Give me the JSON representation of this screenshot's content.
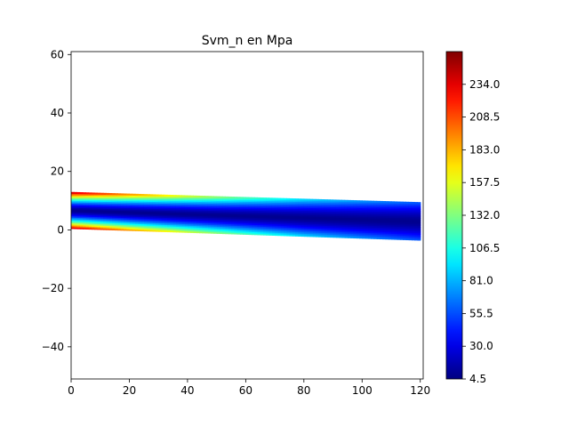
{
  "chart_data": {
    "type": "heatmap",
    "title": "Svm_n en Mpa",
    "xlabel": "",
    "ylabel": "",
    "xlim": [
      0,
      121
    ],
    "ylim": [
      -51,
      61
    ],
    "xticks": [
      "0",
      "20",
      "40",
      "60",
      "80",
      "100",
      "120"
    ],
    "xtick_values": [
      0,
      20,
      40,
      60,
      80,
      100,
      120
    ],
    "yticks": [
      "−40",
      "−20",
      "0",
      "20",
      "40",
      "60"
    ],
    "ytick_values": [
      -40,
      -20,
      0,
      20,
      40,
      60
    ],
    "grid": false,
    "colormap": "jet",
    "colorbar": {
      "min": 4.5,
      "max": 259.5,
      "ticks": [
        "4.5",
        "30.0",
        "55.5",
        "81.0",
        "106.5",
        "132.0",
        "157.5",
        "183.0",
        "208.5",
        "234.0"
      ],
      "tick_values": [
        4.5,
        30.0,
        55.5,
        81.0,
        106.5,
        132.0,
        157.5,
        183.0,
        208.5,
        234.0
      ]
    },
    "beam": {
      "x_range": [
        0,
        120
      ],
      "bottom_edge": {
        "x": [
          0,
          120
        ],
        "y": [
          0.5,
          -3.5
        ]
      },
      "top_edge": {
        "x": [
          0,
          120
        ],
        "y": [
          13,
          9.5
        ]
      },
      "stress_at_outer_fibres": {
        "x": [
          0,
          20,
          40,
          60,
          80,
          100,
          120
        ],
        "svm": [
          250,
          200,
          160,
          125,
          95,
          75,
          60
        ]
      },
      "stress_at_neutral_axis": 8,
      "neutral_axis_fraction": 0.5
    }
  }
}
